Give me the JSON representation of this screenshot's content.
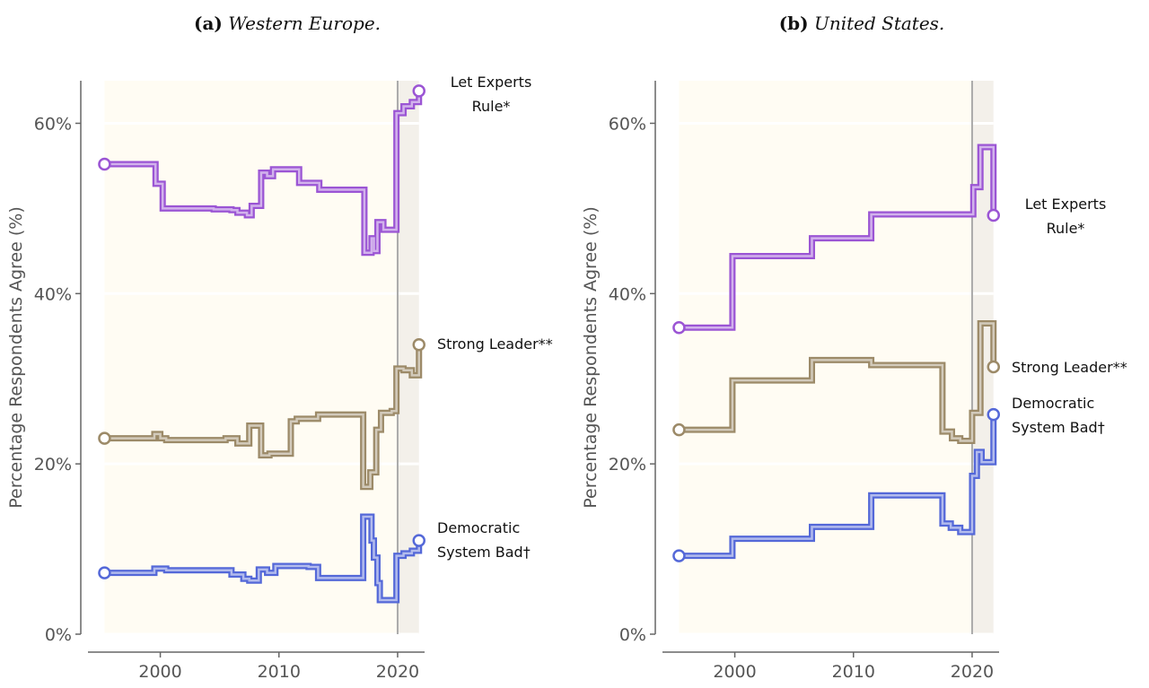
{
  "chart_data": [
    {
      "type": "step",
      "panel_label": "(a)",
      "title": "Western Europe.",
      "y_label": "Percentage Respondents Agree (%)",
      "xlim": [
        1993.3,
        2022.5
      ],
      "xticks": [
        2000,
        2010,
        2020
      ],
      "ylim": [
        0,
        65
      ],
      "yticks": [
        {
          "value": 0,
          "label": "0%"
        },
        {
          "value": 20,
          "label": "20%"
        },
        {
          "value": 40,
          "label": "40%"
        },
        {
          "value": 60,
          "label": "60%"
        }
      ],
      "grid": true,
      "vline": 2020,
      "shaded_regions": [
        {
          "from": 1995.3,
          "to": 2020,
          "color": "#fffcf3"
        },
        {
          "from": 2020,
          "to": 2021.8,
          "color": "#f3f0ea"
        }
      ],
      "series": [
        {
          "name": "Let Experts Rule*",
          "color": "#9b55d4",
          "x": [
            1995.3,
            1999.6,
            2000.2,
            2004.5,
            2006.0,
            2006.5,
            2007.3,
            2007.7,
            2008.5,
            2009.0,
            2009.5,
            2011.7,
            2013.4,
            2017.2,
            2017.8,
            2018.0,
            2018.3,
            2018.8,
            2019.9,
            2020.5,
            2021.2,
            2021.8
          ],
          "values": [
            55.2,
            52.9,
            50.0,
            49.9,
            49.8,
            49.5,
            49.2,
            50.3,
            54.2,
            53.8,
            54.6,
            53.0,
            52.2,
            44.8,
            46.5,
            45.0,
            48.4,
            47.5,
            61.2,
            62.0,
            62.5,
            63.8
          ]
        },
        {
          "name": "Strong Leader**",
          "color": "#9c8a68",
          "x": [
            1995.3,
            1999.5,
            2000.0,
            2000.5,
            2005.5,
            2006.5,
            2007.5,
            2008.5,
            2009.2,
            2011.0,
            2011.5,
            2013.3,
            2017.1,
            2017.7,
            2018.2,
            2018.6,
            2019.5,
            2019.9,
            2020.5,
            2021.2,
            2021.8
          ],
          "values": [
            23.0,
            23.5,
            23.0,
            22.8,
            23.0,
            22.4,
            24.5,
            21.0,
            21.2,
            25.0,
            25.3,
            25.8,
            17.3,
            19.0,
            24.0,
            26.0,
            26.2,
            31.2,
            31.0,
            30.4,
            34.0
          ]
        },
        {
          "name": "Democratic System Bad†",
          "color": "#5468d8",
          "x": [
            1995.3,
            1999.5,
            2000.5,
            2006.0,
            2007.0,
            2007.5,
            2008.3,
            2009.0,
            2009.7,
            2012.5,
            2013.3,
            2017.1,
            2017.8,
            2018.0,
            2018.3,
            2018.5,
            2019.9,
            2020.5,
            2021.2,
            2021.8
          ],
          "values": [
            7.2,
            7.7,
            7.5,
            7.0,
            6.5,
            6.3,
            7.6,
            7.2,
            8.0,
            7.9,
            6.6,
            13.8,
            11.0,
            9.0,
            6.0,
            4.0,
            9.2,
            9.5,
            9.8,
            11.0
          ]
        }
      ]
    },
    {
      "type": "step",
      "panel_label": "(b)",
      "title": "United States.",
      "y_label": "Percentage Respondents Agree (%)",
      "xlim": [
        1993.3,
        2022.5
      ],
      "xticks": [
        2000,
        2010,
        2020
      ],
      "ylim": [
        0,
        65
      ],
      "yticks": [
        {
          "value": 0,
          "label": "0%"
        },
        {
          "value": 20,
          "label": "20%"
        },
        {
          "value": 40,
          "label": "40%"
        },
        {
          "value": 60,
          "label": "60%"
        }
      ],
      "grid": true,
      "vline": 2020,
      "shaded_regions": [
        {
          "from": 1995.3,
          "to": 2020,
          "color": "#fffcf3"
        },
        {
          "from": 2020,
          "to": 2021.8,
          "color": "#f3f0ea"
        }
      ],
      "series": [
        {
          "name": "Let Experts Rule*",
          "color": "#9b55d4",
          "x": [
            1995.3,
            1999.8,
            2006.5,
            2011.5,
            2020.1,
            2020.7,
            2021.8
          ],
          "values": [
            36.0,
            44.4,
            46.5,
            49.3,
            52.5,
            57.2,
            49.2
          ]
        },
        {
          "name": "Strong Leader**",
          "color": "#9c8a68",
          "x": [
            1995.3,
            1999.8,
            2006.5,
            2011.5,
            2017.5,
            2018.3,
            2019.0,
            2020.0,
            2020.7,
            2021.8
          ],
          "values": [
            24.0,
            29.8,
            32.2,
            31.6,
            23.8,
            23.0,
            22.7,
            26.0,
            36.5,
            31.4
          ]
        },
        {
          "name": "Democratic System Bad†",
          "color": "#5468d8",
          "x": [
            1995.3,
            1999.8,
            2006.5,
            2011.5,
            2017.5,
            2018.2,
            2019.0,
            2020.0,
            2020.4,
            2020.8,
            2021.8
          ],
          "values": [
            9.2,
            11.2,
            12.6,
            16.3,
            13.0,
            12.5,
            12.0,
            18.6,
            21.4,
            20.2,
            25.8
          ]
        }
      ]
    }
  ]
}
